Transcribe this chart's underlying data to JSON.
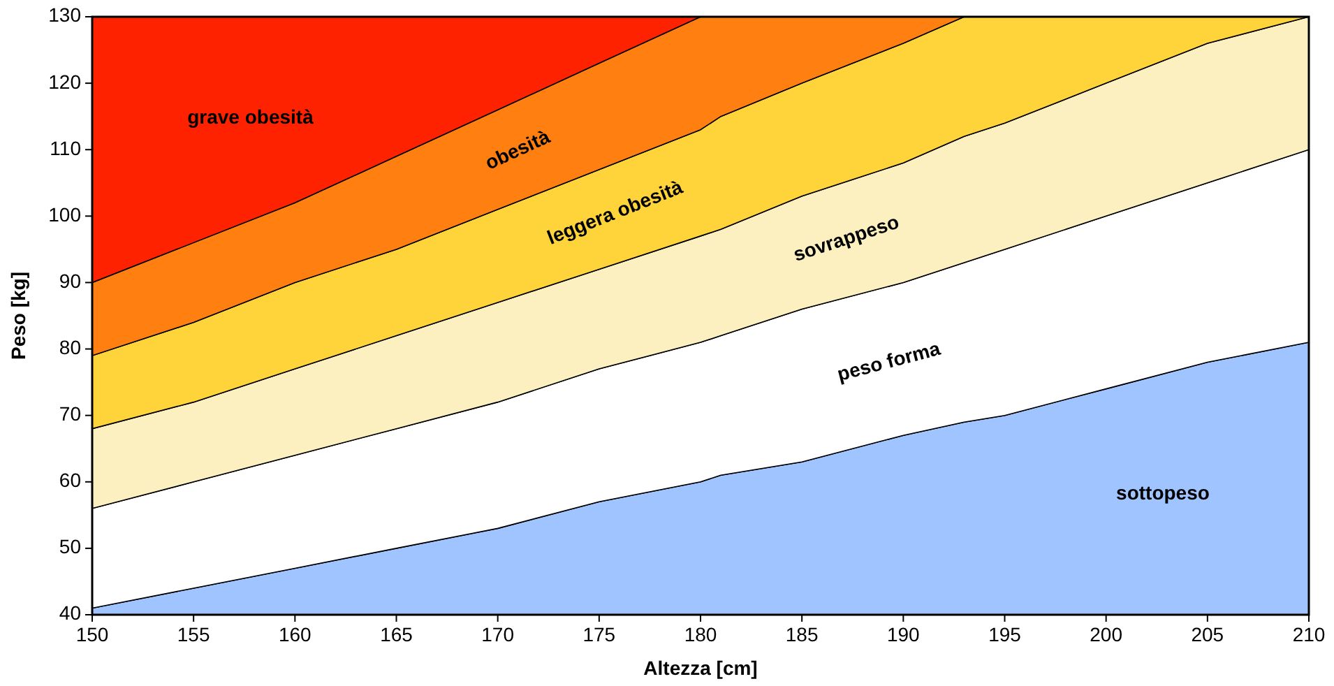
{
  "chart_data": {
    "type": "area",
    "xlabel": "Altezza [cm]",
    "ylabel": "Peso [kg]",
    "xlim": [
      150,
      210
    ],
    "ylim": [
      40,
      130
    ],
    "xticks": [
      150,
      155,
      160,
      165,
      170,
      175,
      180,
      185,
      190,
      195,
      200,
      205,
      210
    ],
    "yticks": [
      40,
      50,
      60,
      70,
      80,
      90,
      100,
      110,
      120,
      130
    ],
    "grid": false,
    "legend": false,
    "x": [
      150,
      155,
      160,
      165,
      170,
      175,
      180,
      181,
      185,
      190,
      193,
      195,
      200,
      205,
      210
    ],
    "series": [
      {
        "name": "sottopeso",
        "color": "#a0c4ff",
        "values": [
          41,
          44,
          47,
          50,
          53,
          57,
          60,
          61,
          63,
          67,
          69,
          70,
          74,
          78,
          81
        ]
      },
      {
        "name": "peso forma",
        "color": "#ffffff",
        "values": [
          56,
          60,
          64,
          68,
          72,
          77,
          81,
          82,
          86,
          90,
          93,
          95,
          100,
          105,
          110
        ]
      },
      {
        "name": "sovrappeso",
        "color": "#fdf0c0",
        "values": [
          68,
          72,
          77,
          82,
          87,
          92,
          97,
          98,
          103,
          108,
          112,
          114,
          120,
          126,
          130
        ]
      },
      {
        "name": "leggera obesità",
        "color": "#ffd43a",
        "values": [
          79,
          84,
          90,
          95,
          101,
          107,
          113,
          115,
          120,
          126,
          130,
          130,
          130,
          130,
          130
        ]
      },
      {
        "name": "obesità",
        "color": "#ff8010",
        "values": [
          90,
          96,
          102,
          109,
          116,
          123,
          130,
          130,
          130,
          130,
          130,
          130,
          130,
          130,
          130
        ]
      },
      {
        "name": "grave obesità",
        "color": "#ff2200",
        "values": [
          130,
          130,
          130,
          130,
          130,
          130,
          130,
          130,
          130,
          130,
          130,
          130,
          130,
          130,
          130
        ]
      }
    ]
  }
}
